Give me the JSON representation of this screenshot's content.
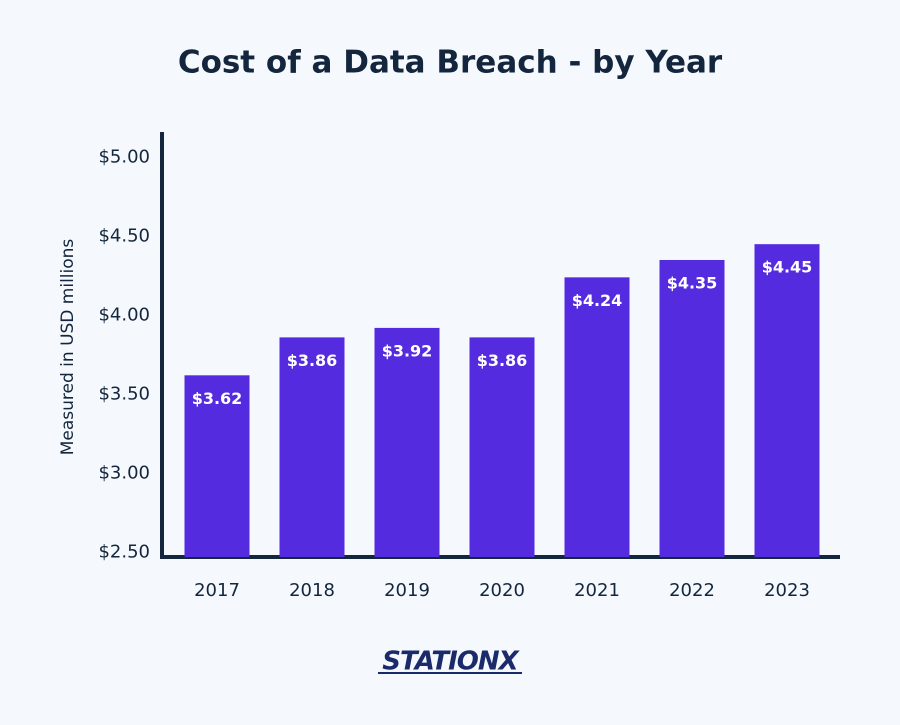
{
  "chart_data": {
    "type": "bar",
    "title": "Cost of a Data Breach - by Year",
    "y_label": "Measured in USD millions",
    "categories": [
      "2017",
      "2018",
      "2019",
      "2020",
      "2021",
      "2022",
      "2023"
    ],
    "values": [
      3.62,
      3.86,
      3.92,
      3.86,
      4.24,
      4.35,
      4.45
    ],
    "value_labels": [
      "$3.62",
      "$3.86",
      "$3.92",
      "$3.86",
      "$4.24",
      "$4.35",
      "$4.45"
    ],
    "color": "#552be0",
    "ylim": [
      2.47,
      5.16
    ],
    "yticks": [
      {
        "value": 2.5,
        "label": "$2.50"
      },
      {
        "value": 3,
        "label": "$3.00"
      },
      {
        "value": 3.5,
        "label": "$3.50"
      },
      {
        "value": 4,
        "label": "$4.00"
      },
      {
        "value": 4.5,
        "label": "$4.50"
      },
      {
        "value": 5,
        "label": "$5.00"
      }
    ],
    "grid": false,
    "logo": "STATIONX"
  }
}
